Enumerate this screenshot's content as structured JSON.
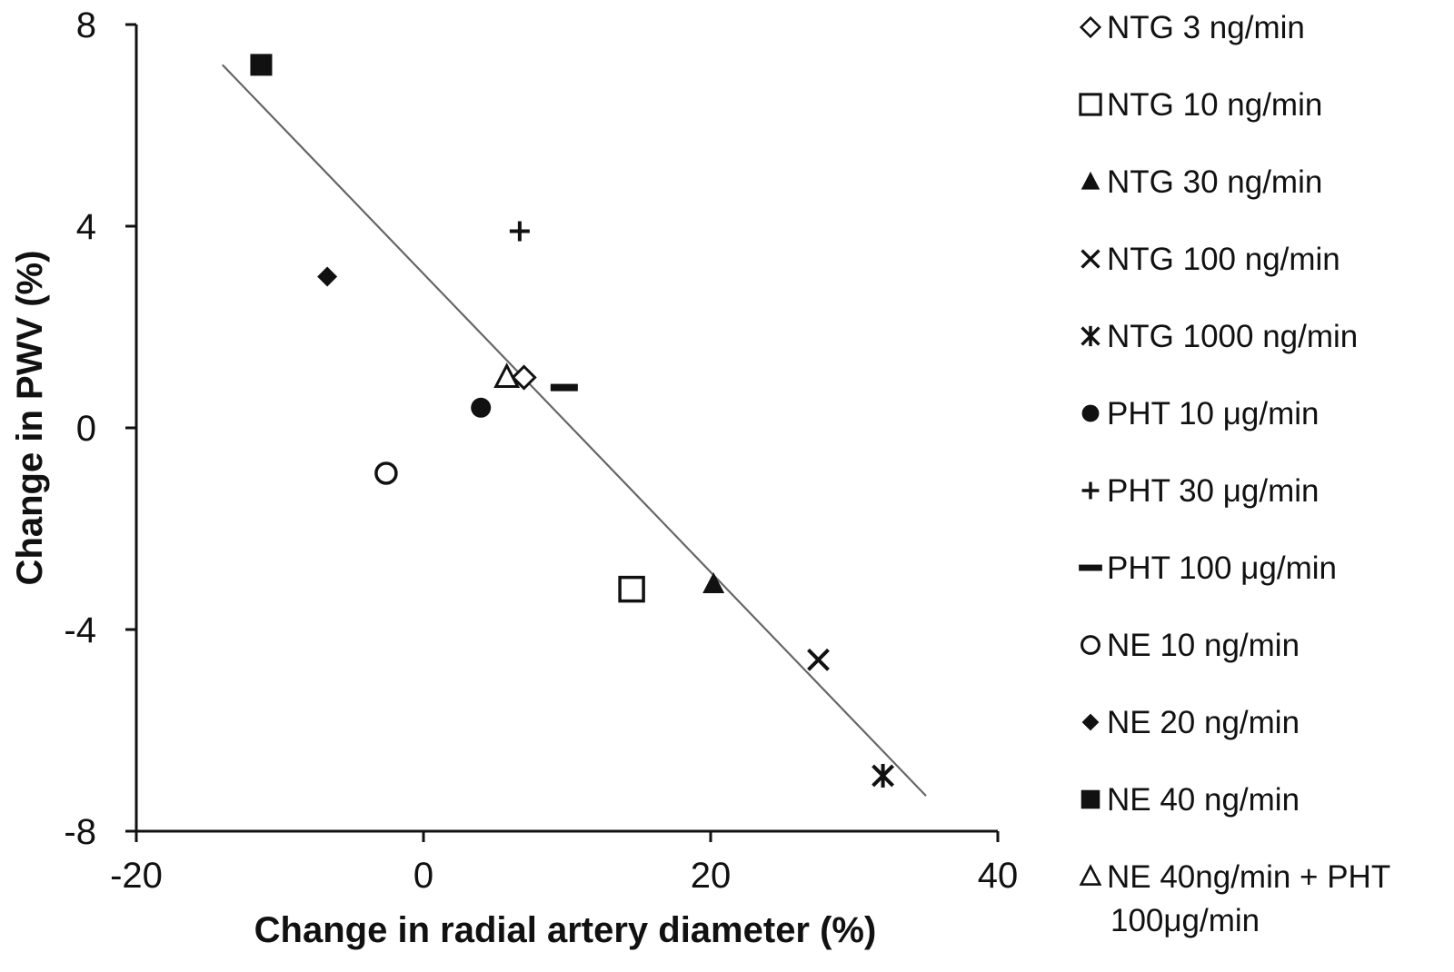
{
  "chart_data": {
    "type": "scatter",
    "xlabel": "Change in radial artery diameter (%)",
    "ylabel": "Change in PWV (%)",
    "xlim": [
      -20,
      40
    ],
    "ylim": [
      -8,
      8
    ],
    "xticks": [
      "-20",
      "0",
      "20",
      "40"
    ],
    "yticks": [
      "8",
      "4",
      "0",
      "-4",
      "-8"
    ],
    "grid": false,
    "legend_position": "right",
    "trendline": {
      "x": [
        -14,
        35
      ],
      "y": [
        7.2,
        -7.3
      ]
    },
    "series": [
      {
        "name": "NTG 3 ng/min",
        "marker": "diamond-open",
        "x": [
          7
        ],
        "y": [
          1.0
        ]
      },
      {
        "name": "NTG 10 ng/min",
        "marker": "square-open",
        "x": [
          14.5
        ],
        "y": [
          -3.2
        ]
      },
      {
        "name": "NTG 30 ng/min",
        "marker": "triangle-filled",
        "x": [
          20.2
        ],
        "y": [
          -3.1
        ]
      },
      {
        "name": "NTG 100 ng/min",
        "marker": "x-bold",
        "x": [
          27.5
        ],
        "y": [
          -4.6
        ]
      },
      {
        "name": "NTG 1000 ng/min",
        "marker": "asterisk",
        "x": [
          32
        ],
        "y": [
          -6.9
        ]
      },
      {
        "name": "PHT 10  μg/min",
        "marker": "circle-filled",
        "x": [
          4
        ],
        "y": [
          0.4
        ]
      },
      {
        "name": "PHT 30 μg/min",
        "marker": "plus",
        "x": [
          6.7
        ],
        "y": [
          3.9
        ]
      },
      {
        "name": "PHT 100 μg/min",
        "marker": "dash",
        "x": [
          9.8
        ],
        "y": [
          0.8
        ]
      },
      {
        "name": "NE 10 ng/min",
        "marker": "circle-open",
        "x": [
          -2.6
        ],
        "y": [
          -0.9
        ]
      },
      {
        "name": "NE 20 ng/min",
        "marker": "diamond-filled",
        "x": [
          -6.7
        ],
        "y": [
          3.0
        ]
      },
      {
        "name": "NE 40 ng/min",
        "marker": "square-filled",
        "x": [
          -11.3
        ],
        "y": [
          7.2
        ]
      },
      {
        "name": "NE 40ng/min + PHT 100μg/min",
        "legend_lines": [
          "NE 40ng/min + PHT",
          "100μg/min"
        ],
        "marker": "triangle-open",
        "x": [
          5.8
        ],
        "y": [
          1.0
        ]
      }
    ]
  }
}
